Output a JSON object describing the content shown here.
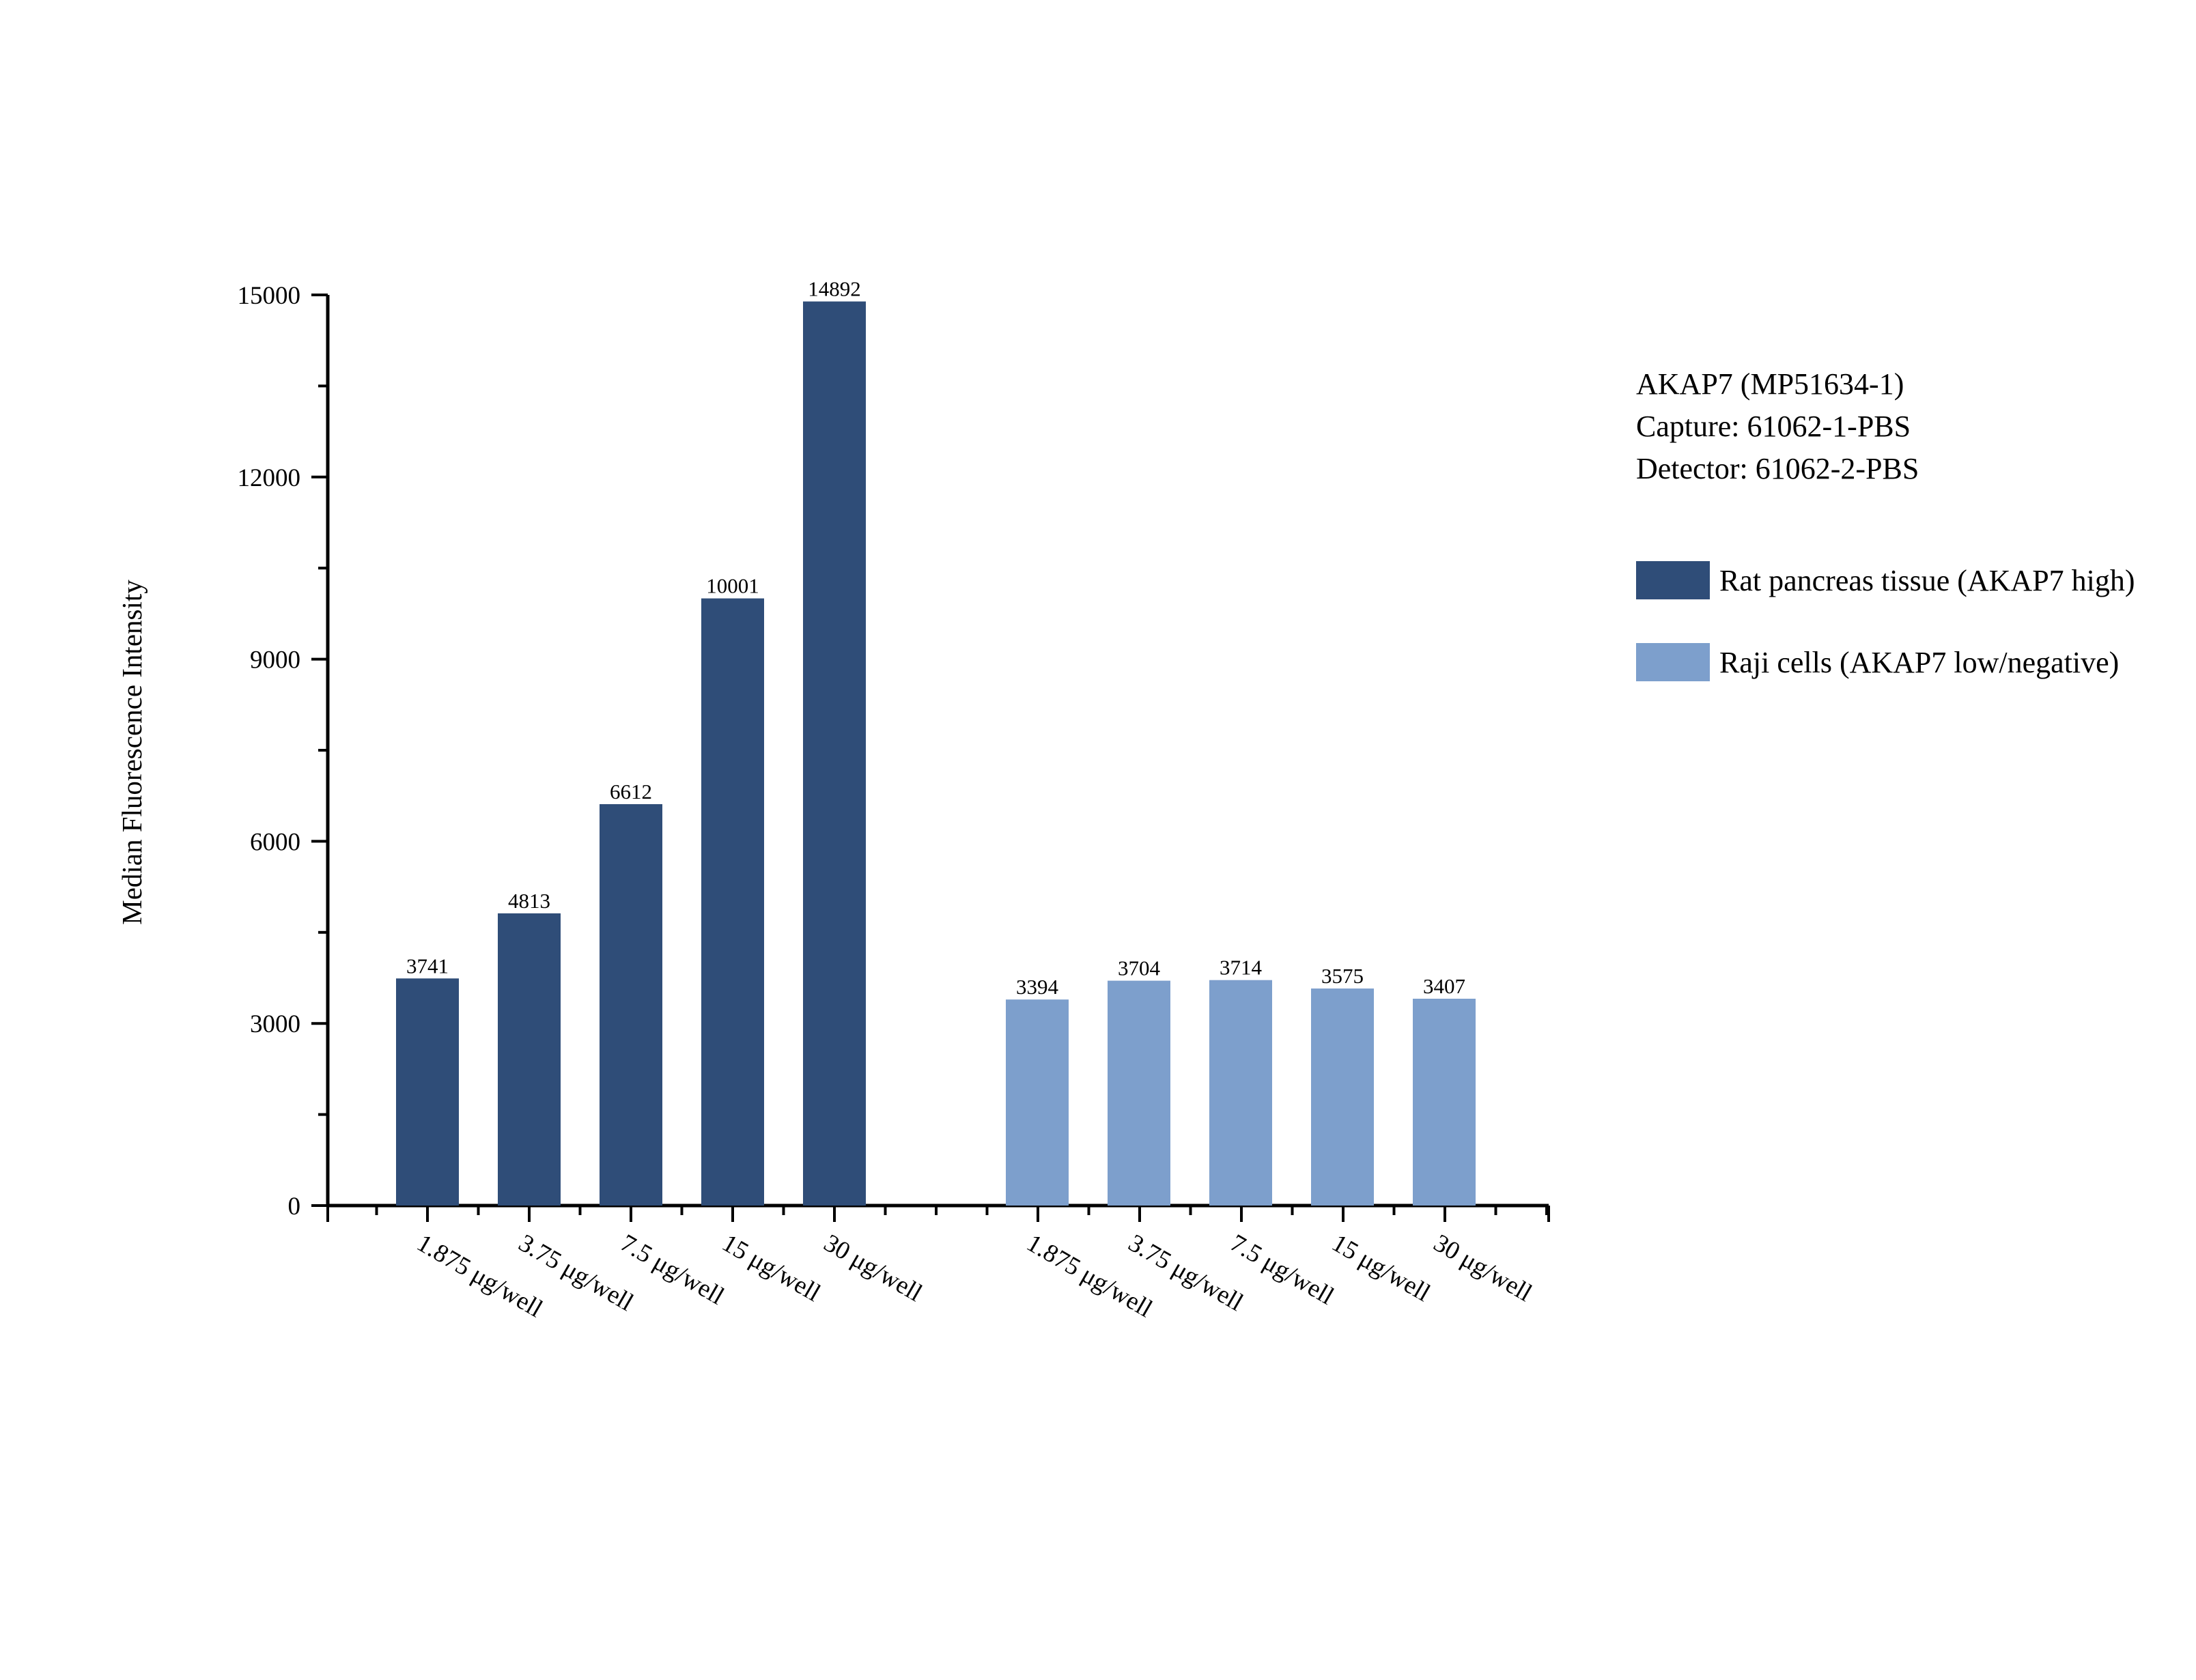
{
  "info": {
    "line1": "AKAP7 (MP51634-1)",
    "line2": "Capture: 61062-1-PBS",
    "line3": "Detector: 61062-2-PBS"
  },
  "chart_data": {
    "type": "bar",
    "title": "",
    "xlabel": "",
    "ylabel": "Median Fluorescence Intensity",
    "ylim": [
      0,
      15000
    ],
    "yticks": [
      0,
      3000,
      6000,
      9000,
      12000,
      15000
    ],
    "grid": false,
    "legend_position": "right",
    "categories": [
      "1.875 μg/well",
      "3.75 μg/well",
      "7.5 μg/well",
      "15 μg/well",
      "30 μg/well"
    ],
    "series": [
      {
        "name": "Rat pancreas tissue (AKAP7 high)",
        "color": "#2f4d78",
        "values": [
          3741,
          4813,
          6612,
          10001,
          14892
        ]
      },
      {
        "name": "Raji cells (AKAP7 low/negative)",
        "color": "#7d9fcc",
        "values": [
          3394,
          3704,
          3714,
          3575,
          3407
        ]
      }
    ]
  }
}
